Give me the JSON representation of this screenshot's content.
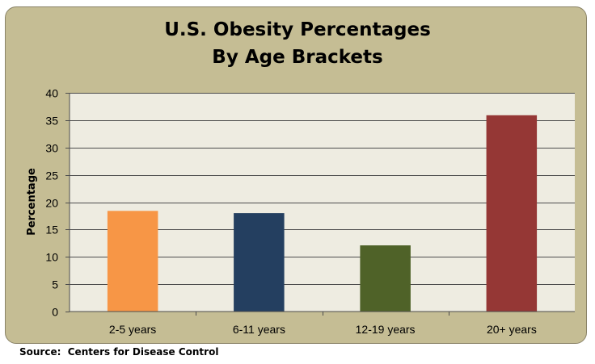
{
  "chart_data": {
    "type": "bar",
    "title": [
      "U.S. Obesity Percentages",
      "By Age Brackets"
    ],
    "xlabel": "",
    "ylabel": "Percentage",
    "categories": [
      "2-5 years",
      "6-11 years",
      "12-19 years",
      "20+ years"
    ],
    "values": [
      18.4,
      18.0,
      12.1,
      35.9
    ],
    "colors": [
      "#f79646",
      "#243f60",
      "#4f6228",
      "#953735"
    ],
    "ylim": [
      0,
      40
    ],
    "yticks": [
      0,
      5,
      10,
      15,
      20,
      25,
      30,
      35,
      40
    ],
    "grid": true,
    "legend": "none"
  },
  "colors": {
    "frame_background": "#c5bd94",
    "plot_background": "#eeece1",
    "gridline": "#4d4d4d"
  },
  "source_note": "Source:  Centers for Disease Control"
}
